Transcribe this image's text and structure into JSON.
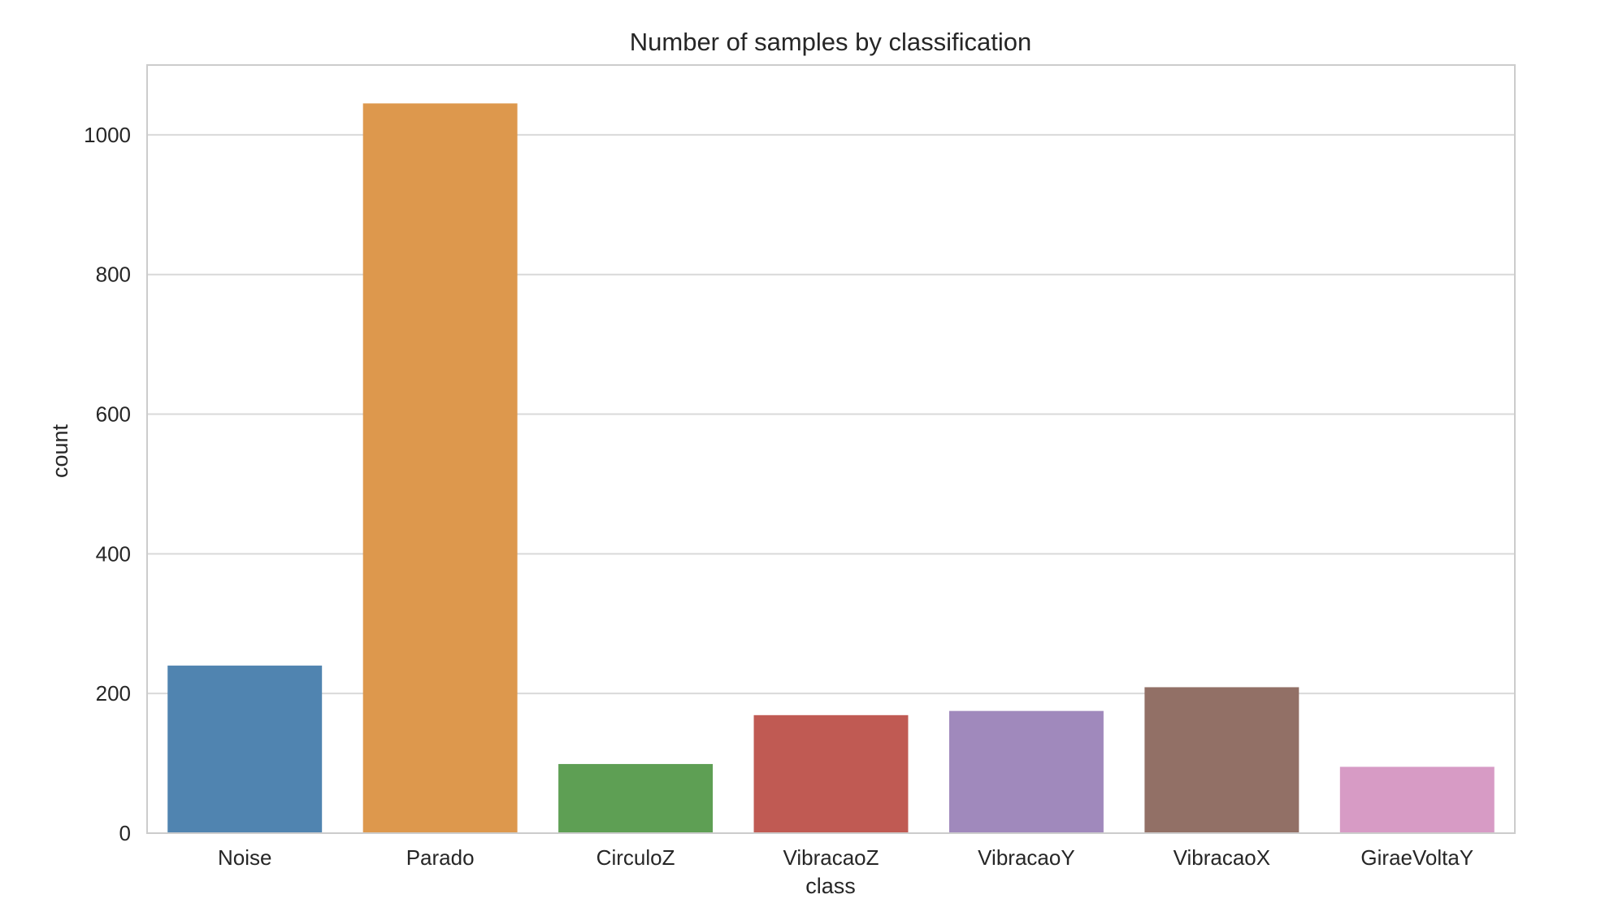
{
  "chart_data": {
    "type": "bar",
    "title": "Number of samples by classification",
    "xlabel": "class",
    "ylabel": "count",
    "categories": [
      "Noise",
      "Parado",
      "CirculoZ",
      "VibracaoZ",
      "VibracaoY",
      "VibracaoX",
      "GiraeVoltaY"
    ],
    "values": [
      240,
      1045,
      99,
      169,
      175,
      209,
      95
    ],
    "colors": [
      "#5084b0",
      "#dd984d",
      "#5e9f54",
      "#c05a53",
      "#a089bc",
      "#927066",
      "#d79bc5"
    ],
    "ylim": [
      0,
      1100
    ],
    "yticks": [
      0,
      200,
      400,
      600,
      800,
      1000
    ],
    "grid": true,
    "legend": "none"
  }
}
